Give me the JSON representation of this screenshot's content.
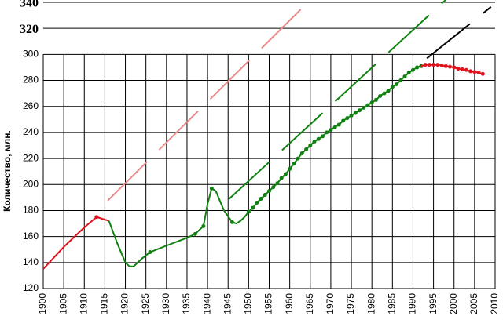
{
  "chart_data": {
    "type": "line",
    "y_label": "Количество, млн.",
    "xlim": [
      1900,
      2010
    ],
    "xticks": [
      1900,
      1905,
      1910,
      1915,
      1920,
      1925,
      1930,
      1935,
      1940,
      1945,
      1950,
      1955,
      1960,
      1965,
      1970,
      1975,
      1980,
      1985,
      1990,
      1995,
      2000,
      2005,
      2010
    ],
    "ylim": [
      120,
      340
    ],
    "yticks": [
      120,
      140,
      160,
      180,
      200,
      220,
      240,
      260,
      280,
      300
    ],
    "upper_yticks": [
      320,
      340
    ],
    "upper_tick_color": "#e00000",
    "grid": true,
    "series": [
      {
        "color": "#e0141e",
        "x": [
          1900,
          1905,
          1910,
          1913,
          1916
        ],
        "values": [
          135,
          152,
          167,
          175,
          172
        ],
        "marked": [
          false,
          false,
          false,
          true,
          false
        ]
      },
      {
        "color": "#108010",
        "x": [
          1916,
          1918,
          1920,
          1921,
          1922,
          1924,
          1926,
          1930,
          1935,
          1937,
          1939,
          1940,
          1941,
          1942,
          1944,
          1946,
          1947,
          1948,
          1949,
          1950,
          1951,
          1952,
          1953,
          1954,
          1955,
          1956,
          1957,
          1958,
          1959,
          1960,
          1961,
          1962,
          1963,
          1964,
          1965,
          1966,
          1967,
          1968,
          1969,
          1970,
          1971,
          1972,
          1973,
          1974,
          1975,
          1976,
          1977,
          1978,
          1979,
          1980,
          1981,
          1982,
          1983,
          1984,
          1985,
          1986,
          1987,
          1988,
          1989,
          1990,
          1991,
          1992
        ],
        "values": [
          172,
          155,
          140,
          137,
          137,
          143,
          148,
          153,
          159,
          162,
          168,
          185,
          197,
          195,
          180,
          171,
          170,
          172,
          175,
          179,
          182,
          186,
          189,
          192,
          195,
          198,
          201,
          205,
          208,
          212,
          216,
          220,
          224,
          227,
          230,
          233,
          235,
          237,
          240,
          242,
          244,
          246,
          249,
          251,
          253,
          255,
          257,
          259,
          261,
          263,
          265,
          268,
          270,
          272,
          275,
          277,
          280,
          283,
          286,
          288,
          290,
          291
        ],
        "marked": [
          false,
          false,
          false,
          false,
          false,
          false,
          true,
          false,
          false,
          true,
          true,
          false,
          true,
          false,
          false,
          true,
          false,
          false,
          false,
          true,
          true,
          true,
          true,
          true,
          true,
          true,
          true,
          true,
          true,
          true,
          true,
          true,
          true,
          true,
          true,
          true,
          true,
          true,
          true,
          true,
          true,
          true,
          true,
          true,
          true,
          true,
          true,
          true,
          true,
          true,
          true,
          true,
          true,
          true,
          true,
          true,
          true,
          true,
          true,
          true,
          true,
          true
        ]
      },
      {
        "color": "#e0141e",
        "x": [
          1992,
          1993,
          1994,
          1995,
          1996,
          1997,
          1998,
          1999,
          2000,
          2001,
          2002,
          2003,
          2004,
          2005,
          2006,
          2007
        ],
        "values": [
          291,
          292,
          292,
          292,
          292,
          291.5,
          291,
          290.5,
          290,
          289,
          288.5,
          288,
          287,
          286.5,
          286,
          285
        ],
        "marked": [
          false,
          true,
          true,
          true,
          true,
          true,
          true,
          true,
          true,
          true,
          true,
          true,
          true,
          true,
          true,
          true
        ]
      }
    ],
    "trend_lines": [
      {
        "color": "#e88a8a",
        "x": [
          1915.7,
          1963.3
        ],
        "values": [
          187.6,
          336.5
        ]
      },
      {
        "color": "#108010",
        "x": [
          1945.2,
          1998
        ],
        "values": [
          188.8,
          342
        ]
      },
      {
        "color": "#000000",
        "x": [
          1993.4,
          2009
        ],
        "values": [
          297,
          336.5
        ]
      }
    ]
  }
}
